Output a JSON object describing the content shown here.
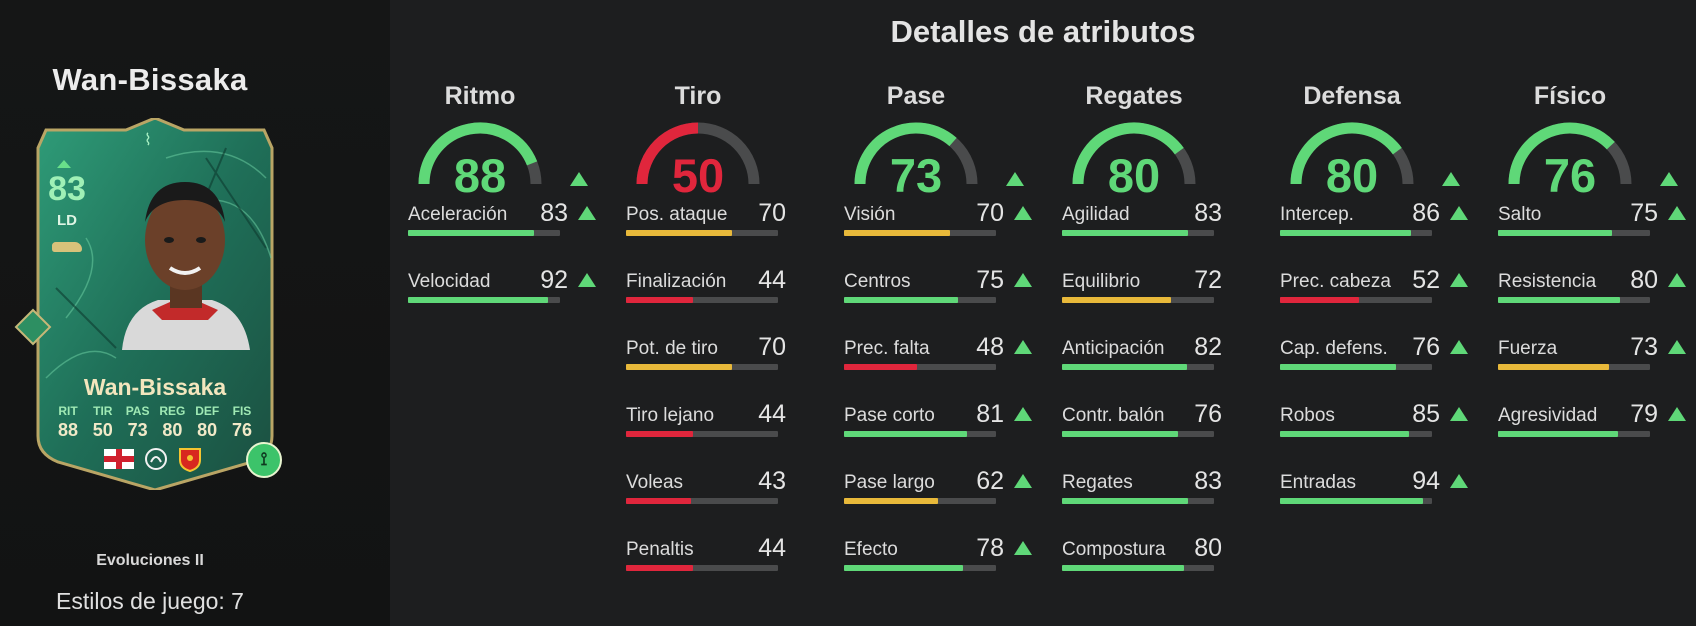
{
  "player": {
    "name": "Wan-Bissaka",
    "card_name": "Wan-Bissaka",
    "overall": "83",
    "position": "LD",
    "card_stats": [
      {
        "label": "RIT",
        "value": "88"
      },
      {
        "label": "TIR",
        "value": "50"
      },
      {
        "label": "PAS",
        "value": "73"
      },
      {
        "label": "REG",
        "value": "80"
      },
      {
        "label": "DEF",
        "value": "80"
      },
      {
        "label": "FIS",
        "value": "76"
      }
    ],
    "card_icons": [
      "england-flag-icon",
      "premier-league-icon",
      "manchester-united-crest-icon",
      "evolution-icon"
    ],
    "evolution": "Evoluciones II",
    "playstyles": "Estilos de juego: 7"
  },
  "section_title": "Detalles de atributos",
  "colors": {
    "green": "#5fd878",
    "yellow": "#e8b93a",
    "red": "#e0263c",
    "track": "#4a4b4c"
  },
  "categories": [
    {
      "name": "Ritmo",
      "value": 88,
      "upgraded": true,
      "attributes": [
        {
          "name": "Aceleración",
          "value": 83,
          "upgraded": true
        },
        {
          "name": "Velocidad",
          "value": 92,
          "upgraded": true
        }
      ]
    },
    {
      "name": "Tiro",
      "value": 50,
      "upgraded": false,
      "attributes": [
        {
          "name": "Pos. ataque",
          "value": 70,
          "upgraded": false
        },
        {
          "name": "Finalización",
          "value": 44,
          "upgraded": false
        },
        {
          "name": "Pot. de tiro",
          "value": 70,
          "upgraded": false
        },
        {
          "name": "Tiro lejano",
          "value": 44,
          "upgraded": false
        },
        {
          "name": "Voleas",
          "value": 43,
          "upgraded": false
        },
        {
          "name": "Penaltis",
          "value": 44,
          "upgraded": false
        }
      ]
    },
    {
      "name": "Pase",
      "value": 73,
      "upgraded": true,
      "attributes": [
        {
          "name": "Visión",
          "value": 70,
          "upgraded": true
        },
        {
          "name": "Centros",
          "value": 75,
          "upgraded": true
        },
        {
          "name": "Prec. falta",
          "value": 48,
          "upgraded": true
        },
        {
          "name": "Pase corto",
          "value": 81,
          "upgraded": true
        },
        {
          "name": "Pase largo",
          "value": 62,
          "upgraded": true
        },
        {
          "name": "Efecto",
          "value": 78,
          "upgraded": true
        }
      ]
    },
    {
      "name": "Regates",
      "value": 80,
      "upgraded": false,
      "attributes": [
        {
          "name": "Agilidad",
          "value": 83,
          "upgraded": false
        },
        {
          "name": "Equilibrio",
          "value": 72,
          "upgraded": false
        },
        {
          "name": "Anticipación",
          "value": 82,
          "upgraded": false
        },
        {
          "name": "Contr. balón",
          "value": 76,
          "upgraded": false
        },
        {
          "name": "Regates",
          "value": 83,
          "upgraded": false
        },
        {
          "name": "Compostura",
          "value": 80,
          "upgraded": false
        }
      ]
    },
    {
      "name": "Defensa",
      "value": 80,
      "upgraded": true,
      "attributes": [
        {
          "name": "Intercep.",
          "value": 86,
          "upgraded": true
        },
        {
          "name": "Prec. cabeza",
          "value": 52,
          "upgraded": true
        },
        {
          "name": "Cap. defens.",
          "value": 76,
          "upgraded": true
        },
        {
          "name": "Robos",
          "value": 85,
          "upgraded": true
        },
        {
          "name": "Entradas",
          "value": 94,
          "upgraded": true
        }
      ]
    },
    {
      "name": "Físico",
      "value": 76,
      "upgraded": true,
      "attributes": [
        {
          "name": "Salto",
          "value": 75,
          "upgraded": true
        },
        {
          "name": "Resistencia",
          "value": 80,
          "upgraded": true
        },
        {
          "name": "Fuerza",
          "value": 73,
          "upgraded": true
        },
        {
          "name": "Agresividad",
          "value": 79,
          "upgraded": true
        }
      ]
    }
  ]
}
